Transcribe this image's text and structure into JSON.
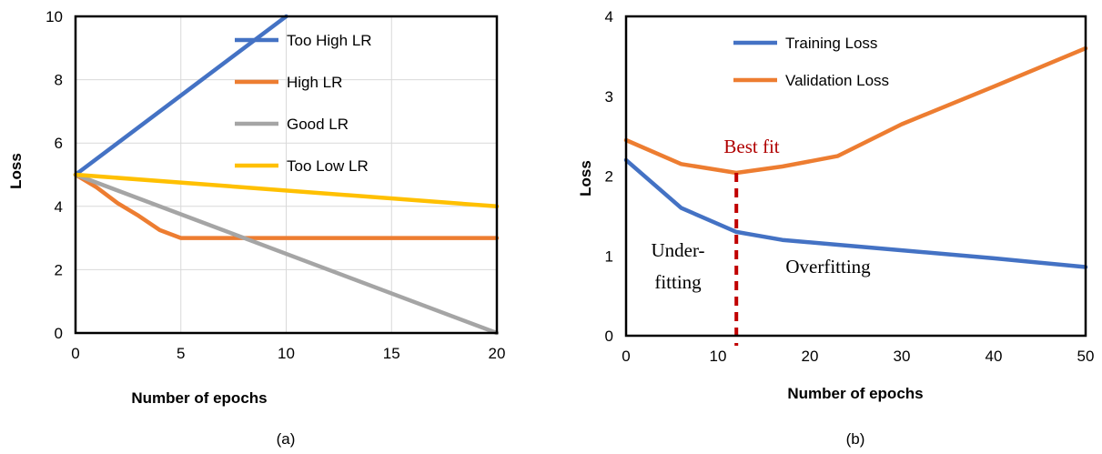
{
  "chart_data": [
    {
      "type": "line",
      "xlabel": "Number of epochs",
      "ylabel": "Loss",
      "caption": "(a)",
      "xlim": [
        0,
        20
      ],
      "ylim": [
        0,
        10
      ],
      "xticks": [
        "0",
        "5",
        "10",
        "15",
        "20"
      ],
      "yticks": [
        "0",
        "2",
        "4",
        "6",
        "8",
        "10"
      ],
      "grid": true,
      "legend_position": "top-right",
      "series": [
        {
          "name": "Too High LR",
          "color": "#4472c4",
          "x": [
            0,
            10
          ],
          "y": [
            5,
            10
          ]
        },
        {
          "name": "High LR",
          "color": "#ed7d31",
          "x": [
            0,
            1,
            2,
            3,
            4,
            5,
            5.5,
            10,
            15,
            20
          ],
          "y": [
            5,
            4.6,
            4.1,
            3.7,
            3.25,
            3.0,
            3.0,
            3.0,
            3.0,
            3.0
          ]
        },
        {
          "name": "Good LR",
          "color": "#a5a5a5",
          "x": [
            0,
            20
          ],
          "y": [
            5,
            0
          ]
        },
        {
          "name": "Too Low LR",
          "color": "#ffc000",
          "x": [
            0,
            20
          ],
          "y": [
            5,
            4
          ]
        }
      ]
    },
    {
      "type": "line",
      "xlabel": "Number of epochs",
      "ylabel": "Loss",
      "caption": "(b)",
      "xlim": [
        0,
        50
      ],
      "ylim": [
        0,
        4
      ],
      "xticks": [
        "0",
        "10",
        "20",
        "30",
        "40",
        "50"
      ],
      "yticks": [
        "0",
        "1",
        "2",
        "3",
        "4"
      ],
      "grid": false,
      "legend_position": "top-left",
      "series": [
        {
          "name": "Training Loss",
          "color": "#4472c4",
          "x": [
            0,
            6,
            12,
            17,
            23,
            30,
            40,
            50
          ],
          "y": [
            2.2,
            1.6,
            1.3,
            1.2,
            1.14,
            1.07,
            0.97,
            0.86
          ]
        },
        {
          "name": "Validation Loss",
          "color": "#ed7d31",
          "x": [
            0,
            6,
            12,
            17,
            23,
            30,
            40,
            50
          ],
          "y": [
            2.45,
            2.15,
            2.04,
            2.12,
            2.25,
            2.65,
            3.12,
            3.6
          ]
        }
      ],
      "annotations": {
        "best_fit_x": 12,
        "best_fit_label": "Best fit",
        "underfitting_line1": "Under-",
        "underfitting_line2": "fitting",
        "overfitting_label": "Overfitting"
      }
    }
  ]
}
